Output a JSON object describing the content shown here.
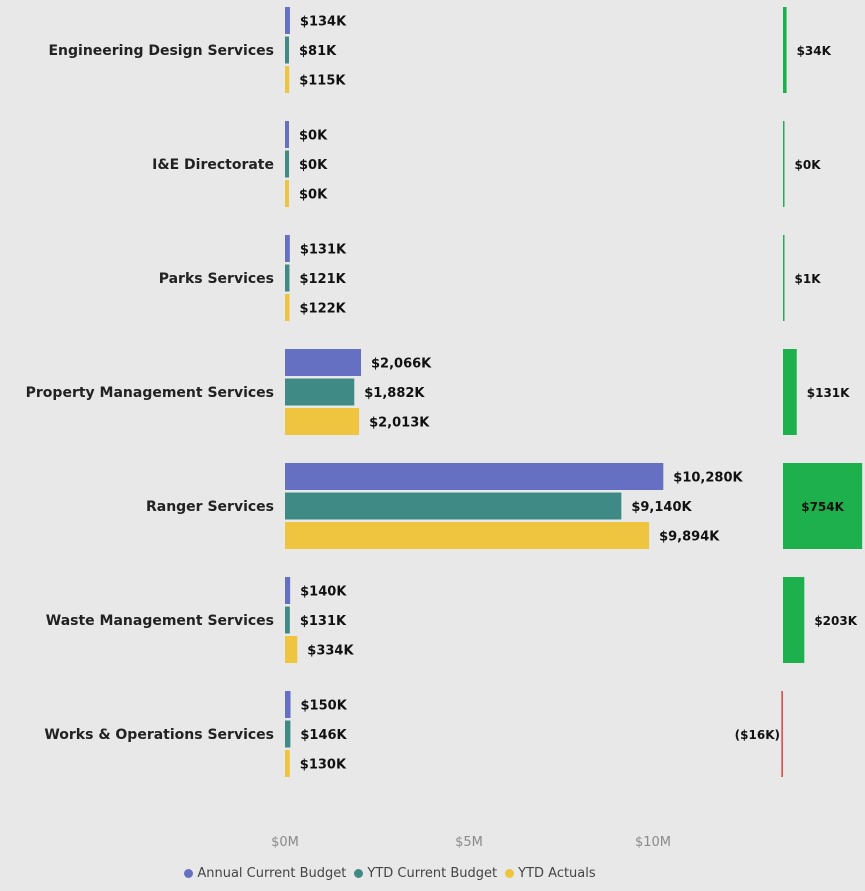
{
  "chart_data": [
    {
      "type": "bar",
      "orientation": "horizontal",
      "categories": [
        "Engineering Design Services",
        "I&E Directorate",
        "Parks Services",
        "Property Management Services",
        "Ranger Services",
        "Waste Management Services",
        "Works & Operations Services"
      ],
      "series": [
        {
          "name": "Annual Current Budget",
          "color": "#6670c2",
          "values": [
            134,
            0,
            131,
            2066,
            10280,
            140,
            150
          ],
          "labels": [
            "$134K",
            "$0K",
            "$131K",
            "$2,066K",
            "$10,280K",
            "$140K",
            "$150K"
          ]
        },
        {
          "name": "YTD Current Budget",
          "color": "#3f8a84",
          "values": [
            81,
            0,
            121,
            1882,
            9140,
            131,
            146
          ],
          "labels": [
            "$81K",
            "$0K",
            "$121K",
            "$1,882K",
            "$9,140K",
            "$131K",
            "$146K"
          ]
        },
        {
          "name": "YTD Actuals",
          "color": "#efc53f",
          "values": [
            115,
            0,
            122,
            2013,
            9894,
            334,
            130
          ],
          "labels": [
            "$115K",
            "$0K",
            "$122K",
            "$2,013K",
            "$9,894K",
            "$334K",
            "$130K"
          ]
        }
      ],
      "xticks": [
        "$0M",
        "$5M",
        "$10M"
      ],
      "xtick_values": [
        0,
        5000,
        10000
      ],
      "xlim": [
        0,
        15000
      ],
      "value_unit": "$K",
      "grid": false,
      "legend_position": "bottom"
    },
    {
      "type": "bar",
      "orientation": "horizontal",
      "categories": [
        "Engineering Design Services",
        "I&E Directorate",
        "Parks Services",
        "Property Management Services",
        "Ranger Services",
        "Waste Management Services",
        "Works & Operations Services"
      ],
      "values": [
        34,
        0,
        1,
        131,
        754,
        203,
        -16
      ],
      "labels": [
        "$34K",
        "$0K",
        "$1K",
        "$131K",
        "$754K",
        "$203K",
        "($16K)"
      ],
      "positive_color": "#1fb04e",
      "negative_color": "#e0524a",
      "xlim": [
        -100,
        790
      ]
    }
  ]
}
